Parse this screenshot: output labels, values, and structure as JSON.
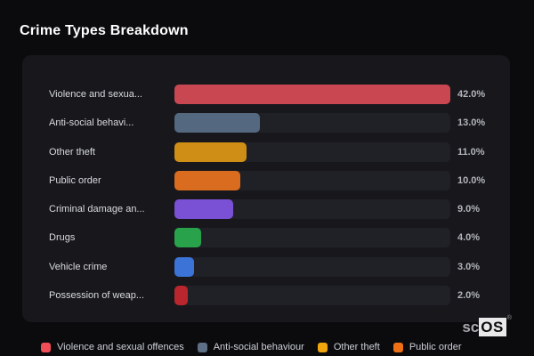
{
  "page": {
    "title": "Crime Types Breakdown",
    "background": "#0b0b0e",
    "panel_background": "#17171c",
    "track_color": "#202127"
  },
  "chart_data": {
    "type": "bar",
    "orientation": "horizontal",
    "title": "Crime Types Breakdown",
    "categories": [
      "Violence and sexua...",
      "Anti-social behavi...",
      "Other theft",
      "Public order",
      "Criminal damage an...",
      "Drugs",
      "Vehicle crime",
      "Possession of weap..."
    ],
    "values": [
      42.0,
      13.0,
      11.0,
      10.0,
      9.0,
      4.0,
      3.0,
      2.0
    ],
    "value_labels": [
      "42.0%",
      "13.0%",
      "11.0%",
      "10.0%",
      "9.0%",
      "4.0%",
      "3.0%",
      "2.0%"
    ],
    "unit": "%",
    "xlim": [
      0,
      42
    ],
    "bar_colors": [
      "#c94751",
      "#54687f",
      "#cf8f16",
      "#d96c1e",
      "#7a50d4",
      "#28a24b",
      "#3b74d6",
      "#b9262e"
    ],
    "grid": false,
    "legend_position": "bottom"
  },
  "rows": [
    {
      "label": "Violence and sexua...",
      "value": 42.0,
      "display": "42.0%",
      "color": "#c94751"
    },
    {
      "label": "Anti-social behavi...",
      "value": 13.0,
      "display": "13.0%",
      "color": "#54687f"
    },
    {
      "label": "Other theft",
      "value": 11.0,
      "display": "11.0%",
      "color": "#cf8f16"
    },
    {
      "label": "Public order",
      "value": 10.0,
      "display": "10.0%",
      "color": "#d96c1e"
    },
    {
      "label": "Criminal damage an...",
      "value": 9.0,
      "display": "9.0%",
      "color": "#7a50d4"
    },
    {
      "label": "Drugs",
      "value": 4.0,
      "display": "4.0%",
      "color": "#28a24b"
    },
    {
      "label": "Vehicle crime",
      "value": 3.0,
      "display": "3.0%",
      "color": "#3b74d6"
    },
    {
      "label": "Possession of weap...",
      "value": 2.0,
      "display": "2.0%",
      "color": "#b9262e"
    }
  ],
  "legend": {
    "items": [
      {
        "label": "Violence and sexual offences",
        "color": "#ef4e57"
      },
      {
        "label": "Anti-social behaviour",
        "color": "#5d7085"
      },
      {
        "label": "Other theft",
        "color": "#f0a50e"
      },
      {
        "label": "Public order",
        "color": "#ed7014"
      }
    ]
  },
  "watermark": {
    "prefix": "sc",
    "box": "OS",
    "reg": "®"
  }
}
